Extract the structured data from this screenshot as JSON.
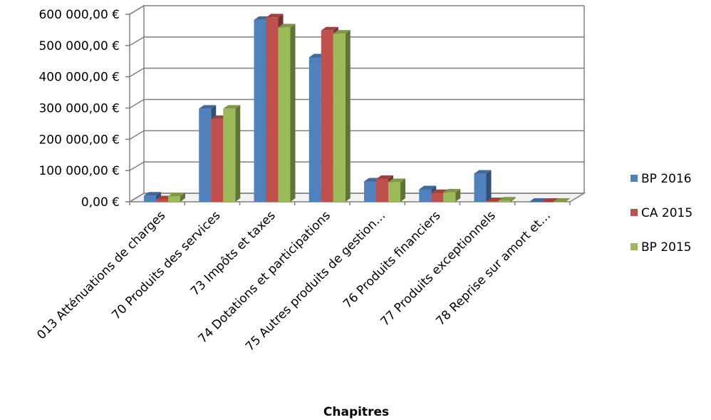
{
  "chart_data": {
    "type": "bar",
    "style": "3d-clustered-column",
    "categories": [
      "013 Atténuations de charges",
      "70 Produits des services",
      "73 Impôts et taxes",
      "74 Dotations et participations",
      "75 Autres produits de gestion…",
      "76 Produits financiers",
      "77 Produits exceptionnels",
      "78 Reprise sur amort et…"
    ],
    "series": [
      {
        "name": "BP 2016",
        "color": "#4F81BD",
        "values": [
          20000,
          298000,
          582000,
          462000,
          65000,
          40000,
          90000,
          0
        ]
      },
      {
        "name": "CA 2015",
        "color": "#C0504D",
        "values": [
          8000,
          265000,
          590000,
          548000,
          73000,
          28000,
          2000,
          0
        ]
      },
      {
        "name": "BP 2015",
        "color": "#9BBB59",
        "values": [
          18000,
          298000,
          558000,
          538000,
          63000,
          30000,
          4000,
          0
        ]
      }
    ],
    "ylim": [
      0,
      600000
    ],
    "yticks": [
      0,
      100000,
      200000,
      300000,
      400000,
      500000,
      600000
    ],
    "ytick_labels": [
      "0,00 €",
      "100 000,00 €",
      "200 000,00 €",
      "300 000,00 €",
      "400 000,00 €",
      "500 000,00 €",
      "600 000,00 €"
    ],
    "xlabel": "Chapitres",
    "ylabel": "",
    "title": "",
    "legend_position": "right",
    "grid": true
  }
}
